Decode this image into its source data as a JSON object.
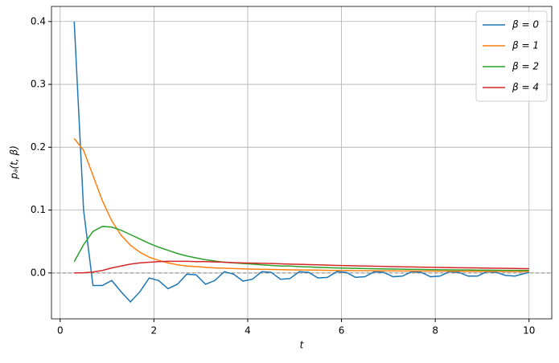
{
  "chart_data": {
    "type": "line",
    "xlabel": "t",
    "ylabel": "pₐ(t, β)",
    "x": [
      0.3,
      0.5,
      0.7,
      0.9,
      1.1,
      1.3,
      1.5,
      1.7,
      1.9,
      2.1,
      2.3,
      2.5,
      2.7,
      2.9,
      3.1,
      3.3,
      3.5,
      3.7,
      3.9,
      4.1,
      4.3,
      4.5,
      4.7,
      4.9,
      5.1,
      5.3,
      5.5,
      5.7,
      5.9,
      6.1,
      6.3,
      6.5,
      6.7,
      6.9,
      7.1,
      7.3,
      7.5,
      7.7,
      7.9,
      8.1,
      8.3,
      8.5,
      8.7,
      8.9,
      9.1,
      9.3,
      9.5,
      9.7,
      9.9,
      10
    ],
    "series": [
      {
        "name": "β = 0",
        "color": "#1f77b4",
        "values": [
          0.4,
          0.1,
          -0.02,
          -0.02,
          -0.012,
          -0.03,
          -0.046,
          -0.03,
          -0.008,
          -0.012,
          -0.025,
          -0.018,
          -0.002,
          -0.003,
          -0.018,
          -0.012,
          0.002,
          -0.002,
          -0.013,
          -0.01,
          0.002,
          0.001,
          -0.01,
          -0.009,
          0.002,
          0.001,
          -0.008,
          -0.007,
          0.002,
          0.001,
          -0.007,
          -0.006,
          0.002,
          0.001,
          -0.006,
          -0.005,
          0.002,
          0.001,
          -0.006,
          -0.005,
          0.002,
          0.001,
          -0.005,
          -0.005,
          0.002,
          0.001,
          -0.004,
          -0.005,
          -0.001,
          0.001
        ]
      },
      {
        "name": "β = 1",
        "color": "#ff7f0e",
        "values": [
          0.214,
          0.195,
          0.155,
          0.115,
          0.083,
          0.06,
          0.044,
          0.033,
          0.025,
          0.02,
          0.016,
          0.013,
          0.011,
          0.01,
          0.009,
          0.008,
          0.0075,
          0.007,
          0.0065,
          0.006,
          0.0058,
          0.0055,
          0.0052,
          0.005,
          0.0048,
          0.0046,
          0.0044,
          0.0042,
          0.004,
          0.0039,
          0.0037,
          0.0036,
          0.0035,
          0.0034,
          0.0033,
          0.0032,
          0.0031,
          0.003,
          0.003,
          0.0029,
          0.0028,
          0.0027,
          0.0027,
          0.0026,
          0.0025,
          0.0025,
          0.0024,
          0.0024,
          0.0023,
          0.0023
        ]
      },
      {
        "name": "β = 2",
        "color": "#2ca02c",
        "values": [
          0.018,
          0.045,
          0.066,
          0.074,
          0.073,
          0.068,
          0.061,
          0.054,
          0.047,
          0.041,
          0.036,
          0.031,
          0.027,
          0.024,
          0.021,
          0.019,
          0.017,
          0.016,
          0.015,
          0.014,
          0.013,
          0.012,
          0.011,
          0.011,
          0.01,
          0.0095,
          0.009,
          0.0085,
          0.008,
          0.0077,
          0.0073,
          0.007,
          0.0067,
          0.0064,
          0.0062,
          0.006,
          0.0057,
          0.0055,
          0.0053,
          0.0051,
          0.005,
          0.0048,
          0.0047,
          0.0045,
          0.0044,
          0.0043,
          0.0042,
          0.0041,
          0.004,
          0.004
        ]
      },
      {
        "name": "β = 4",
        "color": "#d62728",
        "values": [
          0.0,
          0.0003,
          0.0015,
          0.004,
          0.008,
          0.011,
          0.014,
          0.016,
          0.017,
          0.018,
          0.0185,
          0.0185,
          0.0185,
          0.018,
          0.018,
          0.0175,
          0.017,
          0.0165,
          0.016,
          0.0157,
          0.0153,
          0.015,
          0.0145,
          0.014,
          0.0137,
          0.0133,
          0.013,
          0.0125,
          0.012,
          0.0117,
          0.0113,
          0.011,
          0.0107,
          0.0104,
          0.0101,
          0.0098,
          0.0095,
          0.0093,
          0.009,
          0.0088,
          0.0085,
          0.0083,
          0.0081,
          0.0079,
          0.0077,
          0.0075,
          0.0073,
          0.0071,
          0.0069,
          0.0068
        ]
      }
    ],
    "xlim": [
      -0.185,
      10.485
    ],
    "ylim": [
      -0.073,
      0.424
    ],
    "xticks": [
      0,
      2,
      4,
      6,
      8,
      10
    ],
    "yticks": [
      {
        "value": 0,
        "label": "0.0"
      },
      0.1,
      0.2,
      0.3,
      0.4
    ],
    "grid": true,
    "legend": "upper right",
    "axhline": {
      "y": 0,
      "color": "#808080",
      "dashed": true
    }
  }
}
